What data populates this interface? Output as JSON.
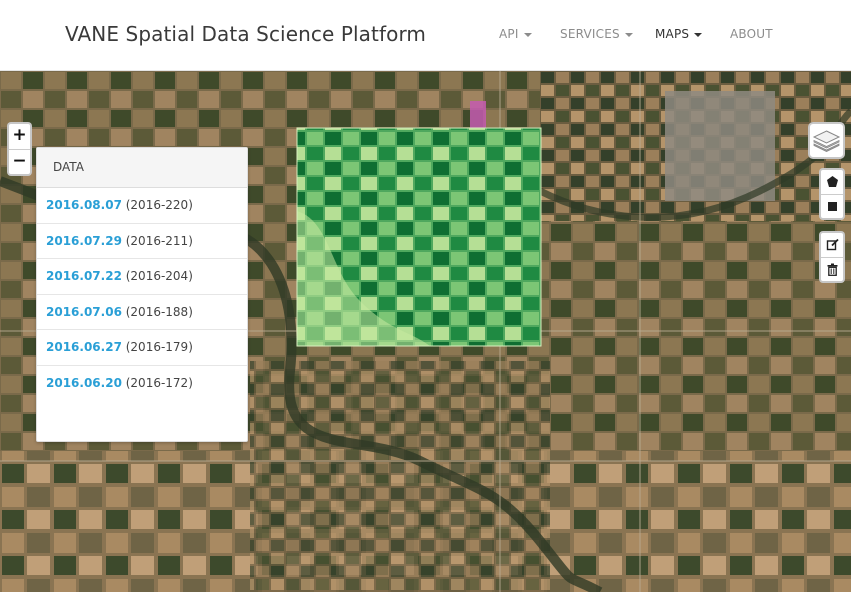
{
  "header": {
    "brand": "VANE Spatial Data Science Platform",
    "nav": [
      {
        "label": "API",
        "dropdown": true,
        "active": false
      },
      {
        "label": "SERVICES",
        "dropdown": true,
        "active": false
      },
      {
        "label": "MAPS",
        "dropdown": true,
        "active": true
      },
      {
        "label": "ABOUT",
        "dropdown": false,
        "active": false
      }
    ]
  },
  "map": {
    "zoom_in": "+",
    "zoom_out": "−",
    "layers_icon": "layers-icon",
    "draw_tools": [
      "draw-polygon-icon",
      "draw-rectangle-icon"
    ],
    "edit_tools": [
      "edit-icon",
      "trash-icon"
    ]
  },
  "panel": {
    "title": "DATA",
    "items": [
      {
        "date": "2016.08.07",
        "doy": " (2016-220)"
      },
      {
        "date": "2016.07.29",
        "doy": " (2016-211)"
      },
      {
        "date": "2016.07.22",
        "doy": " (2016-204)"
      },
      {
        "date": "2016.07.06",
        "doy": " (2016-188)"
      },
      {
        "date": "2016.06.27",
        "doy": " (2016-179)"
      },
      {
        "date": "2016.06.20",
        "doy": " (2016-172)"
      }
    ]
  },
  "colors": {
    "link": "#2a9fd6",
    "ndvi_low": "#c7e9a0",
    "ndvi_high": "#0b6b2d"
  }
}
